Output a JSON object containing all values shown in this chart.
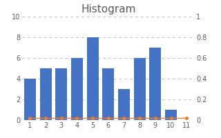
{
  "title": "Histogram",
  "bar_positions": [
    1,
    2,
    3,
    4,
    5,
    6,
    7,
    8,
    9,
    10
  ],
  "bar_heights": [
    4,
    5,
    5,
    6,
    8,
    5,
    3,
    6,
    7,
    1
  ],
  "bar_color": "#4472C4",
  "bar_width": 0.75,
  "dot_positions": [
    1,
    2,
    3,
    4,
    5,
    6,
    7,
    8,
    9,
    10,
    11
  ],
  "dot_values": [
    0.02,
    0.02,
    0.02,
    0.02,
    0.02,
    0.02,
    0.02,
    0.02,
    0.02,
    0.02,
    0.02
  ],
  "dot_color": "#ED7D31",
  "xlim": [
    0.5,
    11.5
  ],
  "xticks": [
    1,
    2,
    3,
    4,
    5,
    6,
    7,
    8,
    9,
    10,
    11
  ],
  "ylim_left": [
    0,
    10
  ],
  "yticks_left": [
    0,
    2,
    4,
    6,
    8,
    10
  ],
  "ylim_right": [
    0,
    1
  ],
  "yticks_right": [
    0,
    0.2,
    0.4,
    0.6,
    0.8,
    1.0
  ],
  "ytick_labels_right": [
    "0",
    "0.2",
    "0.4",
    "0.6",
    "0.8",
    "1"
  ],
  "grid_color": "#C0C0C0",
  "plot_bg": "#FFFFFF",
  "figure_bg": "#FFFFFF",
  "title_fontsize": 11,
  "title_color": "#595959",
  "tick_fontsize": 7,
  "tick_color": "#595959"
}
